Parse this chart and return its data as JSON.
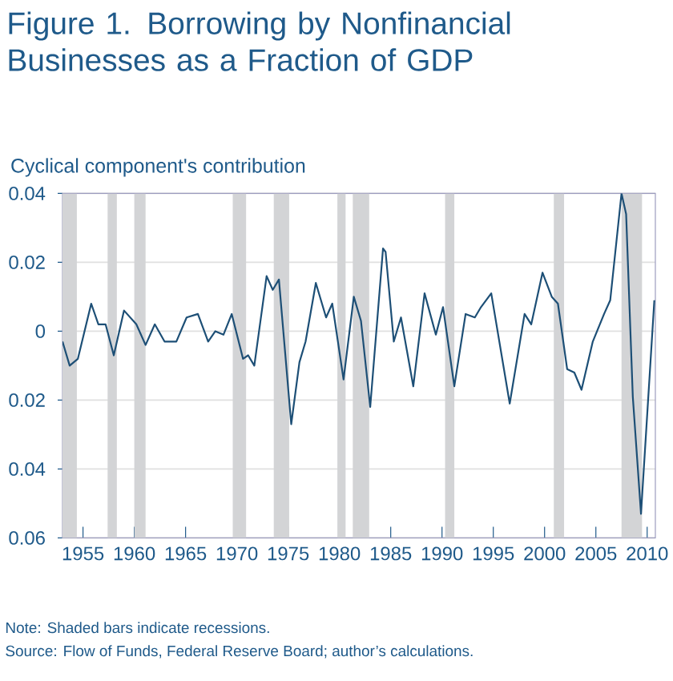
{
  "chart_data": {
    "type": "line",
    "title": "Figure 1. Borrowing by Nonfinancial Businesses as a Fraction of GDP",
    "ylabel": "Cyclical component's contribution",
    "x": [
      1953,
      1953.7,
      1954.5,
      1955.8,
      1956.5,
      1957.2,
      1958.0,
      1959.0,
      1960.2,
      1961.1,
      1962.0,
      1962.95,
      1964.1,
      1965.1,
      1966.2,
      1967.2,
      1967.9,
      1968.7,
      1969.5,
      1970.6,
      1971.1,
      1971.7,
      1972.9,
      1973.5,
      1974.1,
      1975.3,
      1976.1,
      1976.7,
      1977.7,
      1978.7,
      1979.3,
      1980.4,
      1981.4,
      1982.1,
      1983.0,
      1984.25,
      1984.5,
      1985.3,
      1986.0,
      1987.2,
      1988.3,
      1989.4,
      1990.1,
      1991.2,
      1992.3,
      1993.2,
      1993.8,
      1994.8,
      1996.6,
      1998.05,
      1998.7,
      1999.8,
      2000.7,
      2001.3,
      2002.2,
      2002.9,
      2003.6,
      2004.7,
      2005.8,
      2006.4,
      2007.5,
      2007.95,
      2008.6,
      2009.4,
      2010.7
    ],
    "values": [
      -0.003,
      -0.01,
      -0.008,
      0.008,
      0.002,
      0.002,
      -0.007,
      0.006,
      0.002,
      -0.004,
      0.002,
      -0.003,
      -0.003,
      0.004,
      0.005,
      -0.003,
      0.0,
      -0.001,
      0.005,
      -0.008,
      -0.007,
      -0.01,
      0.016,
      0.012,
      0.015,
      -0.027,
      -0.009,
      -0.003,
      0.014,
      0.004,
      0.008,
      -0.014,
      0.01,
      0.003,
      -0.022,
      0.024,
      0.023,
      -0.003,
      0.004,
      -0.016,
      0.011,
      -0.001,
      0.007,
      -0.016,
      0.005,
      0.004,
      0.007,
      0.011,
      -0.021,
      0.005,
      0.002,
      0.017,
      0.01,
      0.008,
      -0.011,
      -0.012,
      -0.017,
      -0.003,
      0.005,
      0.009,
      0.04,
      0.034,
      -0.019,
      -0.053,
      0.009
    ],
    "color": "#1d4f76",
    "xlim": [
      1953,
      2010.8
    ],
    "ylim": [
      -0.06,
      0.04
    ],
    "xticks": [
      1955,
      1960,
      1965,
      1970,
      1975,
      1980,
      1985,
      1990,
      1995,
      2000,
      2005,
      2010
    ],
    "yticks": [
      0.04,
      0.02,
      0,
      {
        "value": -0.02,
        "label": "0.02"
      },
      {
        "value": -0.04,
        "label": "0.04"
      },
      {
        "value": -0.06,
        "label": "0.06"
      }
    ],
    "grid": "y",
    "bands": [
      {
        "axis": "x",
        "from": 1953,
        "to": 1954.4,
        "color": "#d3d4d6"
      },
      {
        "axis": "x",
        "from": 1957.4,
        "to": 1958.3,
        "color": "#d3d4d6"
      },
      {
        "axis": "x",
        "from": 1960.0,
        "to": 1961.1,
        "color": "#d3d4d6"
      },
      {
        "axis": "x",
        "from": 1969.6,
        "to": 1970.9,
        "color": "#d3d4d6"
      },
      {
        "axis": "x",
        "from": 1973.6,
        "to": 1975.1,
        "color": "#d3d4d6"
      },
      {
        "axis": "x",
        "from": 1979.8,
        "to": 1980.6,
        "color": "#d3d4d6"
      },
      {
        "axis": "x",
        "from": 1981.3,
        "to": 1982.9,
        "color": "#d3d4d6"
      },
      {
        "axis": "x",
        "from": 1990.3,
        "to": 1991.2,
        "color": "#d3d4d6"
      },
      {
        "axis": "x",
        "from": 2000.9,
        "to": 2001.9,
        "color": "#d3d4d6"
      },
      {
        "axis": "x",
        "from": 2007.5,
        "to": 2009.5,
        "color": "#d3d4d6"
      }
    ],
    "annotations": [
      "Note: Shaded bars indicate recessions.",
      "Source: Flow of Funds, Federal Reserve Board; author’s calculations."
    ]
  }
}
